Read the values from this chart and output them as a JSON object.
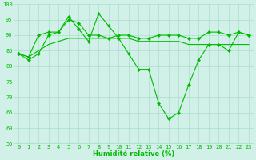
{
  "x": [
    0,
    1,
    2,
    3,
    4,
    5,
    6,
    7,
    8,
    9,
    10,
    11,
    12,
    13,
    14,
    15,
    16,
    17,
    18,
    19,
    20,
    21,
    22,
    23
  ],
  "line1": [
    84,
    82,
    84,
    90,
    91,
    96,
    92,
    88,
    97,
    93,
    89,
    84,
    79,
    79,
    68,
    63,
    65,
    74,
    82,
    87,
    87,
    85,
    91,
    90
  ],
  "line2": [
    84,
    83,
    90,
    91,
    91,
    95,
    94,
    90,
    90,
    89,
    90,
    90,
    89,
    89,
    90,
    90,
    90,
    89,
    89,
    91,
    91,
    90,
    91,
    90
  ],
  "line3": [
    84,
    83,
    85,
    87,
    88,
    89,
    89,
    89,
    89,
    89,
    89,
    89,
    88,
    88,
    88,
    88,
    88,
    87,
    87,
    87,
    87,
    87,
    87,
    87
  ],
  "line_color": "#00bb00",
  "bg_color": "#d0f0e8",
  "grid_color": "#aaddcc",
  "xlabel": "Humidité relative (%)",
  "ylim": [
    55,
    100
  ],
  "yticks": [
    55,
    60,
    65,
    70,
    75,
    80,
    85,
    90,
    95,
    100
  ],
  "xticks": [
    0,
    1,
    2,
    3,
    4,
    5,
    6,
    7,
    8,
    9,
    10,
    11,
    12,
    13,
    14,
    15,
    16,
    17,
    18,
    19,
    20,
    21,
    22,
    23
  ],
  "xlabel_fontsize": 6.0,
  "tick_fontsize": 5.0,
  "lw": 0.8,
  "marker_size": 2.2
}
